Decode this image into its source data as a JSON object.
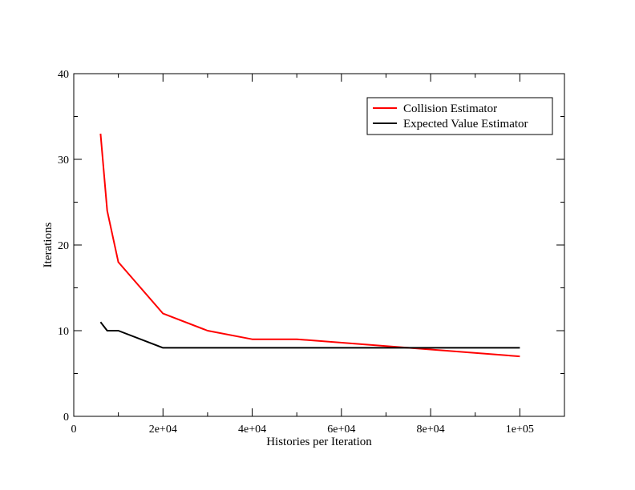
{
  "chart_data": {
    "type": "line",
    "title": "",
    "xlabel": "Histories per Iteration",
    "ylabel": "Iterations",
    "xlim": [
      0,
      110000
    ],
    "ylim": [
      0,
      40
    ],
    "x_ticks": [
      0,
      20000,
      40000,
      60000,
      80000,
      100000
    ],
    "x_tick_labels": [
      "0",
      "2e+04",
      "4e+04",
      "6e+04",
      "8e+04",
      "1e+05"
    ],
    "y_ticks": [
      0,
      10,
      20,
      30,
      40
    ],
    "y_tick_labels": [
      "0",
      "10",
      "20",
      "30",
      "40"
    ],
    "grid": false,
    "legend_position": "top-right",
    "series": [
      {
        "name": "Collision Estimator",
        "color": "#ff0000",
        "x": [
          6000,
          7500,
          10000,
          20000,
          30000,
          40000,
          50000,
          75000,
          100000
        ],
        "y": [
          33,
          24,
          18,
          12,
          10,
          9,
          9,
          8,
          7
        ]
      },
      {
        "name": "Expected Value Estimator",
        "color": "#000000",
        "x": [
          6000,
          7500,
          10000,
          20000,
          30000,
          40000,
          50000,
          75000,
          100000
        ],
        "y": [
          11,
          10,
          10,
          8,
          8,
          8,
          8,
          8,
          8
        ]
      }
    ]
  }
}
